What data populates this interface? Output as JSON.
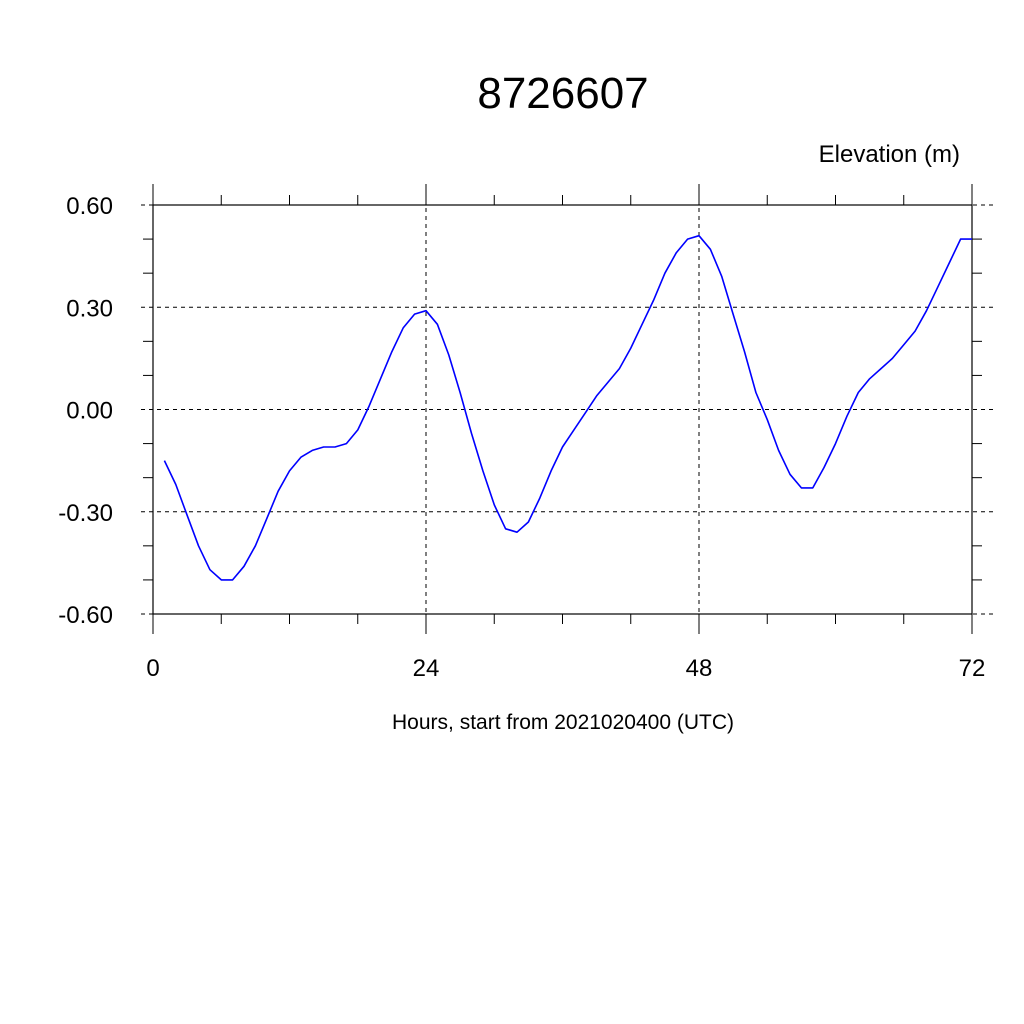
{
  "chart_data": {
    "type": "line",
    "title": "8726607",
    "ylabel": "Elevation (m)",
    "xlabel": "Hours, start from 2021020400 (UTC)",
    "xlim": [
      0,
      72
    ],
    "ylim": [
      -0.6,
      0.6
    ],
    "x_ticks": [
      0,
      24,
      48,
      72
    ],
    "x_tick_labels": [
      "0",
      "24",
      "48",
      "72"
    ],
    "y_ticks": [
      0.6,
      0.3,
      0.0,
      -0.3,
      -0.6
    ],
    "y_tick_labels": [
      "0.60",
      "0.30",
      "0.00",
      "-0.30",
      "-0.60"
    ],
    "grid": true,
    "series": [
      {
        "color": "#0000ff",
        "x": [
          1,
          2,
          3,
          4,
          5,
          6,
          7,
          8,
          9,
          10,
          11,
          12,
          13,
          14,
          15,
          16,
          17,
          18,
          19,
          20,
          21,
          22,
          23,
          24,
          25,
          26,
          27,
          28,
          29,
          30,
          31,
          32,
          33,
          34,
          35,
          36,
          37,
          38,
          39,
          40,
          41,
          42,
          43,
          44,
          45,
          46,
          47,
          48,
          49,
          50,
          51,
          52,
          53,
          54,
          55,
          56,
          57,
          58,
          59,
          60,
          61,
          62,
          63,
          64,
          65,
          66,
          67,
          68,
          69,
          70,
          71,
          72
        ],
        "y": [
          -0.15,
          -0.22,
          -0.31,
          -0.4,
          -0.47,
          -0.5,
          -0.5,
          -0.46,
          -0.4,
          -0.32,
          -0.24,
          -0.18,
          -0.14,
          -0.12,
          -0.11,
          -0.11,
          -0.1,
          -0.06,
          0.01,
          0.09,
          0.17,
          0.24,
          0.28,
          0.29,
          0.25,
          0.16,
          0.05,
          -0.07,
          -0.18,
          -0.28,
          -0.35,
          -0.36,
          -0.33,
          -0.26,
          -0.18,
          -0.11,
          -0.06,
          -0.01,
          0.04,
          0.08,
          0.12,
          0.18,
          0.25,
          0.32,
          0.4,
          0.46,
          0.5,
          0.51,
          0.47,
          0.39,
          0.28,
          0.17,
          0.05,
          -0.03,
          -0.12,
          -0.19,
          -0.23,
          -0.23,
          -0.17,
          -0.1,
          -0.02,
          0.05,
          0.09,
          0.12,
          0.15,
          0.19,
          0.23,
          0.29,
          0.36,
          0.43,
          0.5,
          0.5
        ]
      }
    ]
  }
}
